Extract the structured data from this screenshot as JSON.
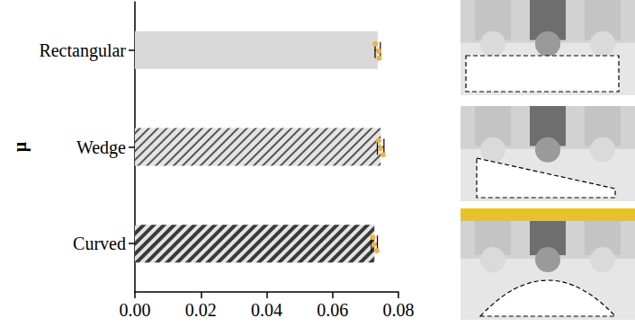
{
  "chart_data": {
    "type": "bar",
    "orientation": "horizontal",
    "ylabel": "μ",
    "categories": [
      "Rectangular",
      "Wedge",
      "Curved"
    ],
    "values": [
      0.0737,
      0.0746,
      0.0727
    ],
    "errors": [
      0.0008,
      0.001,
      0.0009
    ],
    "points": [
      [
        0.073,
        0.074,
        0.0741
      ],
      [
        0.074,
        0.0745,
        0.0753
      ],
      [
        0.0722,
        0.0726,
        0.0734
      ]
    ],
    "colors": [
      "#d9d9d9",
      "#e4e4e4",
      "#e4e4e4"
    ],
    "xlim": [
      0,
      0.08
    ],
    "xticks": [
      {
        "value": 0,
        "label": "0.00"
      },
      {
        "value": 0.02,
        "label": "0.02"
      },
      {
        "value": 0.04,
        "label": "0.04"
      },
      {
        "value": 0.06,
        "label": "0.06"
      },
      {
        "value": 0.08,
        "label": "0.08"
      }
    ],
    "grid": false
  }
}
